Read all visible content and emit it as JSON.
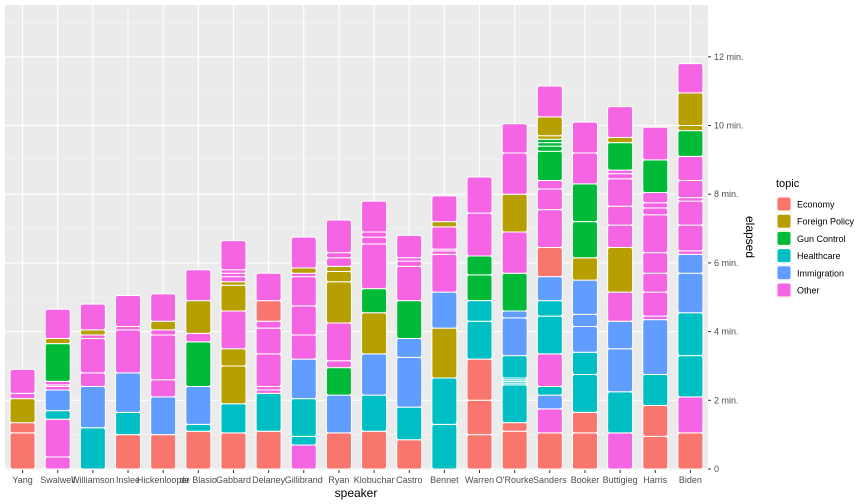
{
  "chart_data": {
    "type": "bar",
    "stacked": true,
    "xlabel": "speaker",
    "ylabel": "elapsed",
    "y_axis_position": "right",
    "y_unit_suffix": " min.",
    "ylim": [
      0,
      13.5
    ],
    "yticks": [
      0,
      2,
      4,
      6,
      8,
      10,
      12
    ],
    "grid": true,
    "legend_position": "right",
    "legend_title": "topic",
    "topics": [
      "Economy",
      "Foreign Policy",
      "Gun Control",
      "Healthcare",
      "Immigration",
      "Other"
    ],
    "colors": {
      "Economy": "#F8766D",
      "Foreign Policy": "#B79F00",
      "Gun Control": "#00BA38",
      "Healthcare": "#00BFC4",
      "Immigration": "#619CFF",
      "Other": "#F564E3"
    },
    "categories": [
      "Yang",
      "Swalwell",
      "Williamson",
      "Inslee",
      "Hickenlooper",
      "de Blasio",
      "Gabbard",
      "Delaney",
      "Gillibrand",
      "Ryan",
      "Klobuchar",
      "Castro",
      "Bennet",
      "Warren",
      "O'Rourke",
      "Sanders",
      "Booker",
      "Buttigieg",
      "Harris",
      "Biden"
    ],
    "segments": [
      [
        [
          "Economy",
          1.05
        ],
        [
          "Economy",
          0.3
        ],
        [
          "Foreign Policy",
          0.7
        ],
        [
          "Other",
          0.15
        ],
        [
          "Other",
          0.7
        ]
      ],
      [
        [
          "Other",
          0.35
        ],
        [
          "Other",
          1.1
        ],
        [
          "Healthcare",
          0.25
        ],
        [
          "Immigration",
          0.6
        ],
        [
          "Other",
          0.1
        ],
        [
          "Other",
          0.05
        ],
        [
          "Other",
          0.1
        ],
        [
          "Gun Control",
          1.1
        ],
        [
          "Foreign Policy",
          0.15
        ],
        [
          "Other",
          0.85
        ]
      ],
      [
        [
          "Healthcare",
          1.2
        ],
        [
          "Immigration",
          1.2
        ],
        [
          "Other",
          0.4
        ],
        [
          "Other",
          1.0
        ],
        [
          "Other",
          0.1
        ],
        [
          "Foreign Policy",
          0.15
        ],
        [
          "Other",
          0.75
        ]
      ],
      [
        [
          "Economy",
          1.0
        ],
        [
          "Healthcare",
          0.65
        ],
        [
          "Immigration",
          1.15
        ],
        [
          "Other",
          1.25
        ],
        [
          "Other",
          0.1
        ],
        [
          "Other",
          0.9
        ]
      ],
      [
        [
          "Economy",
          1.0
        ],
        [
          "Immigration",
          1.1
        ],
        [
          "Other",
          0.5
        ],
        [
          "Other",
          1.3
        ],
        [
          "Other",
          0.15
        ],
        [
          "Foreign Policy",
          0.25
        ],
        [
          "Other",
          0.8
        ]
      ],
      [
        [
          "Economy",
          1.1
        ],
        [
          "Healthcare",
          0.2
        ],
        [
          "Immigration",
          1.1
        ],
        [
          "Gun Control",
          1.3
        ],
        [
          "Other",
          0.25
        ],
        [
          "Foreign Policy",
          0.95
        ],
        [
          "Other",
          0.9
        ]
      ],
      [
        [
          "Economy",
          1.05
        ],
        [
          "Healthcare",
          0.85
        ],
        [
          "Foreign Policy",
          1.1
        ],
        [
          "Foreign Policy",
          0.5
        ],
        [
          "Other",
          1.1
        ],
        [
          "Foreign Policy",
          0.75
        ],
        [
          "Foreign Policy",
          0.1
        ],
        [
          "Other",
          0.15
        ],
        [
          "Other",
          0.1
        ],
        [
          "Other",
          0.1
        ],
        [
          "Other",
          0.85
        ]
      ],
      [
        [
          "Economy",
          1.1
        ],
        [
          "Healthcare",
          1.1
        ],
        [
          "Other",
          0.1
        ],
        [
          "Other",
          0.1
        ],
        [
          "Other",
          0.95
        ],
        [
          "Other",
          0.75
        ],
        [
          "Other",
          0.2
        ],
        [
          "Economy",
          0.6
        ],
        [
          "Other",
          0.8
        ]
      ],
      [
        [
          "Other",
          0.7
        ],
        [
          "Healthcare",
          0.25
        ],
        [
          "Healthcare",
          1.1
        ],
        [
          "Immigration",
          1.15
        ],
        [
          "Other",
          0.7
        ],
        [
          "Other",
          0.85
        ],
        [
          "Other",
          0.85
        ],
        [
          "Other",
          0.1
        ],
        [
          "Foreign Policy",
          0.15
        ],
        [
          "Other",
          0.9
        ]
      ],
      [
        [
          "Economy",
          1.05
        ],
        [
          "Immigration",
          1.1
        ],
        [
          "Gun Control",
          0.8
        ],
        [
          "Other",
          0.2
        ],
        [
          "Other",
          1.1
        ],
        [
          "Foreign Policy",
          1.2
        ],
        [
          "Foreign Policy",
          0.3
        ],
        [
          "Foreign Policy",
          0.15
        ],
        [
          "Other",
          0.25
        ],
        [
          "Other",
          0.15
        ],
        [
          "Other",
          0.95
        ]
      ],
      [
        [
          "Economy",
          1.1
        ],
        [
          "Healthcare",
          1.05
        ],
        [
          "Immigration",
          1.2
        ],
        [
          "Foreign Policy",
          1.2
        ],
        [
          "Gun Control",
          0.7
        ],
        [
          "Other",
          1.3
        ],
        [
          "Other",
          0.2
        ],
        [
          "Other",
          0.15
        ],
        [
          "Other",
          0.9
        ]
      ],
      [
        [
          "Economy",
          0.85
        ],
        [
          "Healthcare",
          0.95
        ],
        [
          "Immigration",
          1.45
        ],
        [
          "Immigration",
          0.55
        ],
        [
          "Gun Control",
          1.1
        ],
        [
          "Other",
          1.0
        ],
        [
          "Other",
          0.15
        ],
        [
          "Other",
          0.1
        ],
        [
          "Other",
          0.65
        ]
      ],
      [
        [
          "Healthcare",
          1.3
        ],
        [
          "Healthcare",
          1.35
        ],
        [
          "Foreign Policy",
          1.45
        ],
        [
          "Immigration",
          1.05
        ],
        [
          "Other",
          1.1
        ],
        [
          "Other",
          0.1
        ],
        [
          "Other",
          0.05
        ],
        [
          "Other",
          0.65
        ],
        [
          "Foreign Policy",
          0.15
        ],
        [
          "Other",
          0.75
        ]
      ],
      [
        [
          "Economy",
          1.0
        ],
        [
          "Economy",
          1.0
        ],
        [
          "Economy",
          1.2
        ],
        [
          "Healthcare",
          1.1
        ],
        [
          "Healthcare",
          0.6
        ],
        [
          "Gun Control",
          0.75
        ],
        [
          "Gun Control",
          0.55
        ],
        [
          "Other",
          1.25
        ],
        [
          "Other",
          1.05
        ]
      ],
      [
        [
          "Economy",
          1.1
        ],
        [
          "Economy",
          0.25
        ],
        [
          "Healthcare",
          1.1
        ],
        [
          "Healthcare",
          0.05
        ],
        [
          "Healthcare",
          0.05
        ],
        [
          "Healthcare",
          0.05
        ],
        [
          "Healthcare",
          0.05
        ],
        [
          "Healthcare",
          0.65
        ],
        [
          "Immigration",
          1.1
        ],
        [
          "Immigration",
          0.2
        ],
        [
          "Gun Control",
          1.1
        ],
        [
          "Other",
          1.2
        ],
        [
          "Foreign Policy",
          1.1
        ],
        [
          "Other",
          1.2
        ],
        [
          "Other",
          0.85
        ]
      ],
      [
        [
          "Economy",
          1.05
        ],
        [
          "Other",
          0.7
        ],
        [
          "Immigration",
          0.4
        ],
        [
          "Healthcare",
          0.25
        ],
        [
          "Other",
          0.95
        ],
        [
          "Healthcare",
          1.1
        ],
        [
          "Healthcare",
          0.45
        ],
        [
          "Immigration",
          0.7
        ],
        [
          "Economy",
          0.85
        ],
        [
          "Other",
          1.1
        ],
        [
          "Other",
          0.6
        ],
        [
          "Other",
          0.25
        ],
        [
          "Gun Control",
          0.85
        ],
        [
          "Gun Control",
          0.15
        ],
        [
          "Gun Control",
          0.1
        ],
        [
          "Gun Control",
          0.1
        ],
        [
          "Foreign Policy",
          0.1
        ],
        [
          "Foreign Policy",
          0.55
        ],
        [
          "Other",
          0.9
        ]
      ],
      [
        [
          "Economy",
          1.05
        ],
        [
          "Economy",
          0.6
        ],
        [
          "Healthcare",
          1.1
        ],
        [
          "Healthcare",
          0.65
        ],
        [
          "Immigration",
          0.75
        ],
        [
          "Immigration",
          0.35
        ],
        [
          "Immigration",
          1.0
        ],
        [
          "Foreign Policy",
          0.65
        ],
        [
          "Gun Control",
          1.05
        ],
        [
          "Gun Control",
          1.1
        ],
        [
          "Other",
          0.9
        ],
        [
          "Other",
          0.9
        ]
      ],
      [
        [
          "Other",
          1.05
        ],
        [
          "Healthcare",
          1.2
        ],
        [
          "Immigration",
          1.25
        ],
        [
          "Immigration",
          0.8
        ],
        [
          "Other",
          0.85
        ],
        [
          "Foreign Policy",
          1.3
        ],
        [
          "Other",
          0.65
        ],
        [
          "Other",
          0.55
        ],
        [
          "Other",
          0.8
        ],
        [
          "Other",
          0.15
        ],
        [
          "Other",
          0.1
        ],
        [
          "Gun Control",
          0.8
        ],
        [
          "Foreign Policy",
          0.15
        ],
        [
          "Other",
          0.9
        ]
      ],
      [
        [
          "Economy",
          0.95
        ],
        [
          "Economy",
          0.9
        ],
        [
          "Healthcare",
          0.9
        ],
        [
          "Immigration",
          1.6
        ],
        [
          "Other",
          0.1
        ],
        [
          "Other",
          0.7
        ],
        [
          "Other",
          0.55
        ],
        [
          "Other",
          0.6
        ],
        [
          "Other",
          1.1
        ],
        [
          "Other",
          0.2
        ],
        [
          "Other",
          0.15
        ],
        [
          "Other",
          0.3
        ],
        [
          "Gun Control",
          0.95
        ],
        [
          "Other",
          0.95
        ]
      ],
      [
        [
          "Economy",
          1.05
        ],
        [
          "Other",
          1.05
        ],
        [
          "Healthcare",
          1.2
        ],
        [
          "Healthcare",
          1.25
        ],
        [
          "Immigration",
          1.15
        ],
        [
          "Immigration",
          0.55
        ],
        [
          "Other",
          0.1
        ],
        [
          "Other",
          0.75
        ],
        [
          "Other",
          0.7
        ],
        [
          "Other",
          0.1
        ],
        [
          "Other",
          0.5
        ],
        [
          "Other",
          0.7
        ],
        [
          "Gun Control",
          0.75
        ],
        [
          "Foreign Policy",
          0.15
        ],
        [
          "Foreign Policy",
          0.95
        ],
        [
          "Other",
          0.85
        ]
      ]
    ]
  }
}
